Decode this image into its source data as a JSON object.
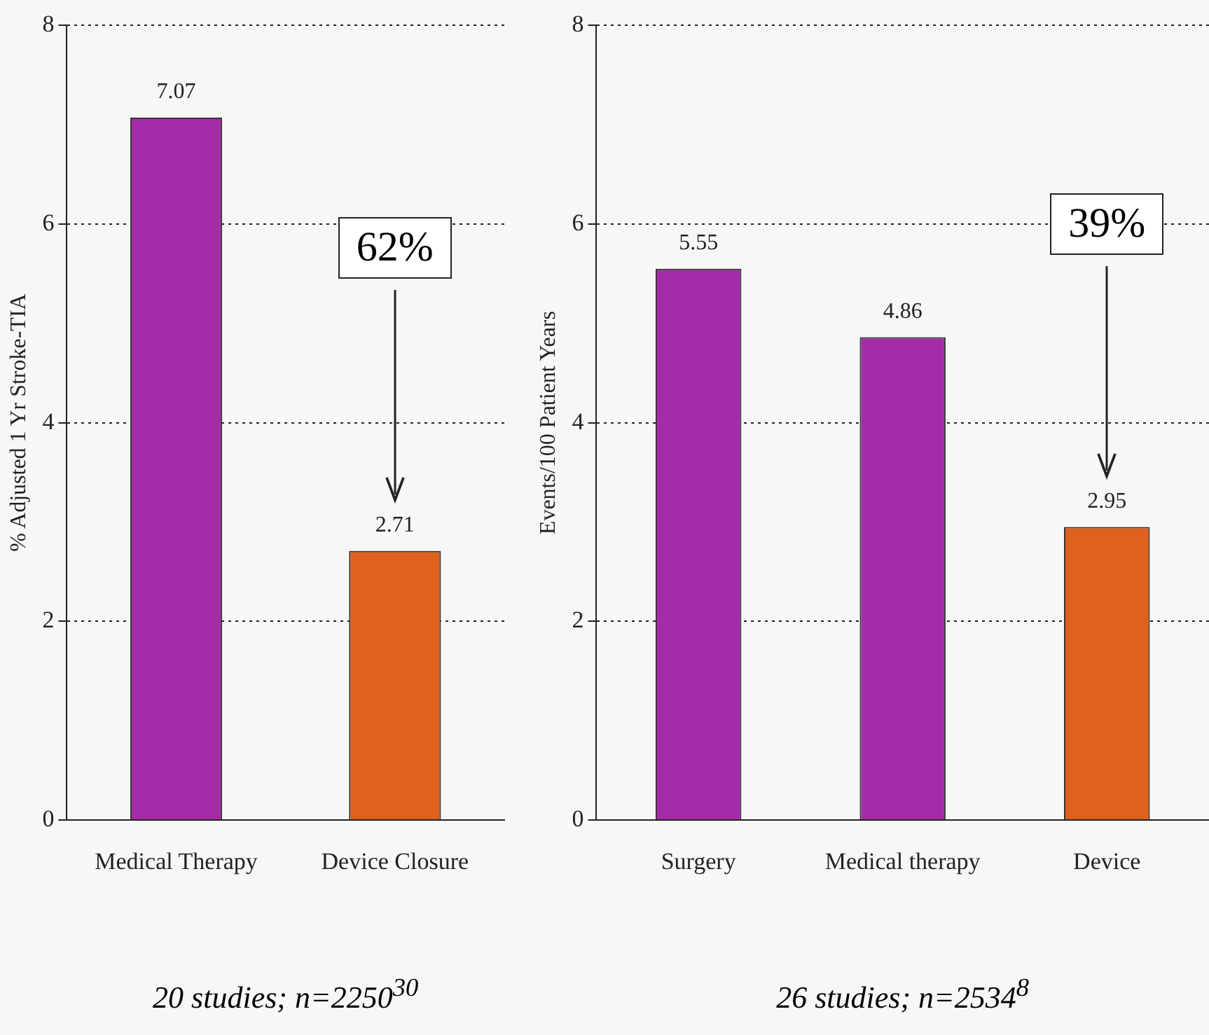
{
  "chart_data": [
    {
      "type": "bar",
      "ylabel": "% Adjusted 1 Yr Stroke-TIA",
      "categories": [
        "Medical Therapy",
        "Device Closure"
      ],
      "values": [
        7.07,
        2.71
      ],
      "colors": [
        "#a52ca8",
        "#e0601e"
      ],
      "ylim": [
        0,
        8
      ],
      "yticks": [
        0,
        2,
        4,
        6,
        8
      ],
      "grid": "y",
      "data_labels": true,
      "annotations": [
        "62%",
        "20 studies; n=2250$^{30}$"
      ]
    },
    {
      "type": "bar",
      "ylabel": "Events/100 Patient Years",
      "categories": [
        "Surgery",
        "Medical therapy",
        "Device"
      ],
      "values": [
        5.55,
        4.86,
        2.95
      ],
      "colors": [
        "#a52ca8",
        "#a52ca8",
        "#e0601e"
      ],
      "ylim": [
        0,
        8
      ],
      "yticks": [
        0,
        2,
        4,
        6,
        8
      ],
      "grid": "y",
      "data_labels": true,
      "annotations": [
        "39%",
        "26 studies; n=2534$^{8}$"
      ]
    }
  ]
}
